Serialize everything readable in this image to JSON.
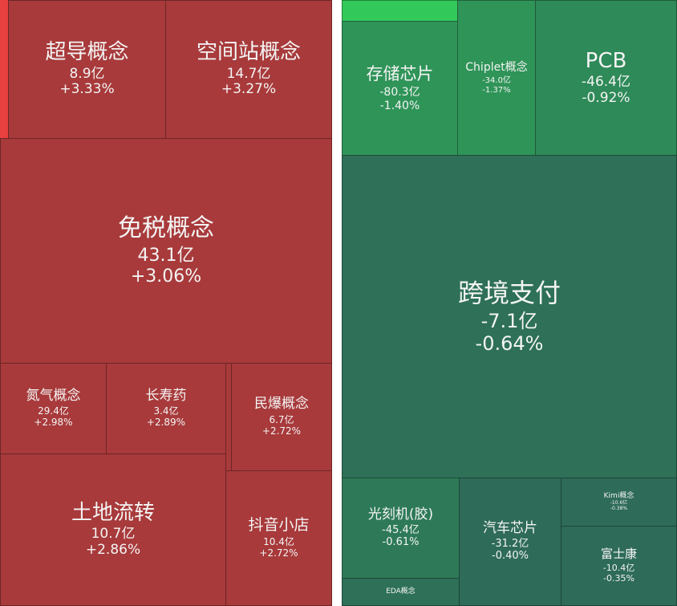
{
  "colors": {
    "up": "#a83a3b",
    "up_edge": "#e8403f",
    "down_bright": "#33c95a"
  },
  "left": [
    {
      "name": "超导概念",
      "amount": "8.9亿",
      "change": "+3.33%"
    },
    {
      "name": "空间站概念",
      "amount": "14.7亿",
      "change": "+3.27%"
    },
    {
      "name": "免税概念",
      "amount": "43.1亿",
      "change": "+3.06%"
    },
    {
      "name": "氮气概念",
      "amount": "29.4亿",
      "change": "+2.98%"
    },
    {
      "name": "长寿药",
      "amount": "3.4亿",
      "change": "+2.89%"
    },
    {
      "name": "民爆概念",
      "amount": "6.7亿",
      "change": "+2.72%"
    },
    {
      "name": "土地流转",
      "amount": "10.7亿",
      "change": "+2.86%"
    },
    {
      "name": "抖音小店",
      "amount": "10.4亿",
      "change": "+2.72%"
    }
  ],
  "right": [
    {
      "name": "存储芯片",
      "amount": "-80.3亿",
      "change": "-1.40%"
    },
    {
      "name": "Chiplet概念",
      "amount": "-34.0亿",
      "change": "-1.37%"
    },
    {
      "name": "PCB",
      "amount": "-46.4亿",
      "change": "-0.92%"
    },
    {
      "name": "跨境支付",
      "amount": "-7.1亿",
      "change": "-0.64%"
    },
    {
      "name": "光刻机(胶)",
      "amount": "-45.4亿",
      "change": "-0.61%"
    },
    {
      "name": "EDA概念"
    },
    {
      "name": "汽车芯片",
      "amount": "-31.2亿",
      "change": "-0.40%"
    },
    {
      "name": "Kimi概念",
      "amount": "-10.6亿",
      "change": "-0.38%"
    },
    {
      "name": "富士康",
      "amount": "-10.4亿",
      "change": "-0.35%"
    }
  ]
}
